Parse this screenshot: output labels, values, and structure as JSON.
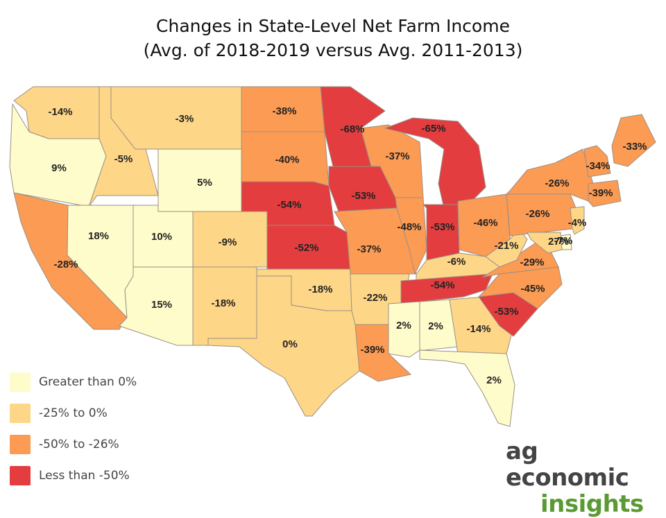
{
  "title": {
    "line1": "Changes in State-Level Net Farm Income",
    "line2": "(Avg. of 2018-2019 versus Avg. 2011-2013)"
  },
  "colors": {
    "greater_than_0": "#fefccb",
    "neg25_to_0": "#fed687",
    "neg50_to_neg26": "#fc9b53",
    "less_than_neg50": "#e33d3f"
  },
  "legend": [
    {
      "label": "Greater than 0%",
      "class": "greater_than_0"
    },
    {
      "label": "-25% to 0%",
      "class": "neg25_to_0"
    },
    {
      "label": "-50% to -26%",
      "class": "neg50_to_neg26"
    },
    {
      "label": "Less than -50%",
      "class": "less_than_neg50"
    }
  ],
  "states": {
    "WA": "-14%",
    "OR": "9%",
    "CA": "-28%",
    "ID": "-5%",
    "NV": "18%",
    "MT": "-3%",
    "WY": "5%",
    "UT": "10%",
    "AZ": "15%",
    "CO": "-9%",
    "NM": "-18%",
    "ND": "-38%",
    "SD": "-40%",
    "NE": "-54%",
    "KS": "-52%",
    "OK": "-18%",
    "TX": "0%",
    "MN": "-68%",
    "IA": "-53%",
    "MO": "-37%",
    "AR": "-22%",
    "LA": "-39%",
    "WI": "-37%",
    "IL": "-48%",
    "MI": "-65%",
    "IN": "-53%",
    "OH": "-46%",
    "KY": "-6%",
    "TN": "-54%",
    "MS": "2%",
    "AL": "2%",
    "GA": "-14%",
    "FL": "2%",
    "SC": "-53%",
    "NC": "-45%",
    "VA": "-29%",
    "WV": "-21%",
    "PA": "-26%",
    "NY": "-26%",
    "ME": "-33%",
    "VT": "-34%",
    "NJ": "-4%",
    "DE": "27%",
    "MD": "-7%",
    "CT": "-39%"
  },
  "logo": {
    "line1": "ag economic",
    "line2": "insights"
  }
}
